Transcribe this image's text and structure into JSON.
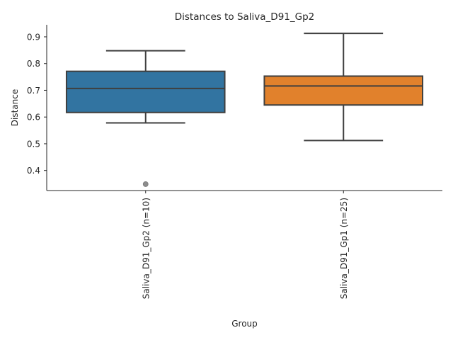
{
  "chart_data": {
    "type": "box",
    "title": "Distances to Saliva_D91_Gp2",
    "xlabel": "Group",
    "ylabel": "Distance",
    "ylim": [
      0.325,
      0.945
    ],
    "yticks": [
      0.4,
      0.5,
      0.6,
      0.7,
      0.8,
      0.9
    ],
    "ytick_labels": [
      "0.4",
      "0.5",
      "0.6",
      "0.7",
      "0.8",
      "0.9"
    ],
    "grid": false,
    "categories": [
      "Saliva_D91_Gp2 (n=10)",
      "Saliva_D91_Gp1 (n=25)"
    ],
    "boxes": [
      {
        "whisker_low": 0.578,
        "q1": 0.617,
        "median": 0.707,
        "q3": 0.771,
        "whisker_high": 0.848,
        "outliers": [
          0.349
        ],
        "color": "#3274a1"
      },
      {
        "whisker_low": 0.512,
        "q1": 0.645,
        "median": 0.716,
        "q3": 0.753,
        "whisker_high": 0.913,
        "outliers": [],
        "color": "#e1812c"
      }
    ],
    "colors": {
      "edge": "#3f3f3f",
      "outlier": "#8c8c8c",
      "axis": "#262626"
    }
  }
}
